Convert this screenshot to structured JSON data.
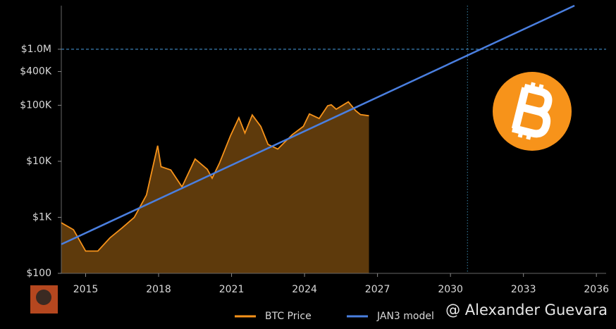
{
  "chart_data": {
    "type": "line",
    "log_y": true,
    "xlim": [
      2014,
      2036.4
    ],
    "ylim": [
      100,
      6000000
    ],
    "xticks": [
      2015,
      2018,
      2021,
      2024,
      2027,
      2030,
      2033,
      2036
    ],
    "yticks": [
      {
        "value": 100,
        "label": "$100"
      },
      {
        "value": 1000,
        "label": "$1K"
      },
      {
        "value": 10000,
        "label": "$10K"
      },
      {
        "value": 100000,
        "label": "$100K"
      },
      {
        "value": 400000,
        "label": "$400K"
      },
      {
        "value": 1000000,
        "label": "$1.0M"
      }
    ],
    "reference_lines": [
      {
        "axis": "y",
        "value": 1000000,
        "color": "#3a7fb5"
      },
      {
        "axis": "x",
        "value": 2030.7,
        "color": "#2f6f8f"
      }
    ],
    "series": [
      {
        "name": "BTC Price",
        "color": "#f7931a",
        "area_color": "#5e3a0c",
        "x": [
          2014.0,
          2014.5,
          2015.0,
          2015.5,
          2016.0,
          2016.5,
          2017.0,
          2017.5,
          2017.96,
          2018.1,
          2018.5,
          2018.96,
          2019.5,
          2020.0,
          2020.2,
          2020.5,
          2020.96,
          2021.3,
          2021.55,
          2021.85,
          2022.2,
          2022.5,
          2022.9,
          2023.5,
          2023.95,
          2024.2,
          2024.6,
          2024.95,
          2025.1,
          2025.3,
          2025.8,
          2026.1,
          2026.3,
          2026.65
        ],
        "values": [
          800,
          600,
          250,
          250,
          430,
          650,
          1000,
          2500,
          19000,
          8000,
          7000,
          3500,
          11000,
          7200,
          5000,
          9200,
          29000,
          60000,
          32000,
          67000,
          42000,
          20000,
          16500,
          30000,
          42000,
          70000,
          58000,
          98000,
          102000,
          85000,
          115000,
          80000,
          68000,
          65000
        ]
      },
      {
        "name": "JAN3 model",
        "color": "#4a7fe0",
        "x": [
          2014.0,
          2035.1
        ],
        "values": [
          330,
          6000000
        ]
      }
    ],
    "watermark": "@ Alexander Guevara"
  }
}
